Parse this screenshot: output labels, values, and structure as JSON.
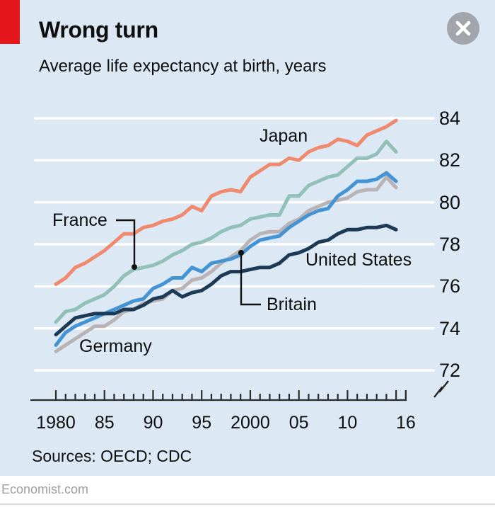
{
  "header": {
    "title": "Wrong turn",
    "subtitle": "Average life expectancy at birth, years"
  },
  "colors": {
    "card_background": "#dce8f4",
    "brand_red": "#e6161d",
    "gridline": "#ffffff",
    "text": "#0e0e0e",
    "close_button": "#a2a6ac"
  },
  "chart_data": {
    "type": "line",
    "title": "Wrong turn",
    "ylabel": "Average life expectancy at birth, years",
    "legend_position": "inline-labels-on-chart",
    "grid": "horizontal-white-lines",
    "x": [
      1980,
      1981,
      1982,
      1983,
      1984,
      1985,
      1986,
      1987,
      1988,
      1989,
      1990,
      1991,
      1992,
      1993,
      1994,
      1995,
      1996,
      1997,
      1998,
      1999,
      2000,
      2001,
      2002,
      2003,
      2004,
      2005,
      2006,
      2007,
      2008,
      2009,
      2010,
      2011,
      2012,
      2013,
      2014,
      2015
    ],
    "series": [
      {
        "name": "Japan",
        "color": "#f08a6e",
        "values": [
          76.1,
          76.4,
          76.9,
          77.1,
          77.4,
          77.7,
          78.1,
          78.5,
          78.5,
          78.8,
          78.9,
          79.1,
          79.2,
          79.4,
          79.8,
          79.6,
          80.3,
          80.5,
          80.6,
          80.5,
          81.2,
          81.5,
          81.8,
          81.8,
          82.1,
          82.0,
          82.4,
          82.6,
          82.7,
          83.0,
          82.9,
          82.7,
          83.2,
          83.4,
          83.6,
          83.9
        ]
      },
      {
        "name": "France",
        "color": "#90c0b8",
        "values": [
          74.3,
          74.8,
          74.9,
          75.2,
          75.4,
          75.6,
          76.0,
          76.5,
          76.8,
          76.9,
          77.0,
          77.2,
          77.5,
          77.7,
          78.0,
          78.1,
          78.3,
          78.6,
          78.8,
          78.9,
          79.2,
          79.3,
          79.4,
          79.4,
          80.3,
          80.3,
          80.8,
          81.0,
          81.2,
          81.3,
          81.7,
          82.1,
          82.1,
          82.3,
          82.9,
          82.4
        ]
      },
      {
        "name": "Britain",
        "color": "#4493d4",
        "values": [
          73.2,
          73.8,
          74.1,
          74.3,
          74.5,
          74.7,
          74.9,
          75.1,
          75.3,
          75.4,
          75.9,
          76.1,
          76.4,
          76.4,
          76.9,
          76.7,
          77.1,
          77.2,
          77.3,
          77.5,
          77.9,
          78.2,
          78.3,
          78.4,
          78.8,
          79.1,
          79.4,
          79.6,
          79.7,
          80.3,
          80.6,
          81.0,
          81.0,
          81.1,
          81.4,
          81.0
        ]
      },
      {
        "name": "Germany",
        "color": "#b9b3b5",
        "values": [
          72.9,
          73.2,
          73.5,
          73.8,
          74.1,
          74.1,
          74.4,
          74.8,
          74.9,
          75.2,
          75.3,
          75.4,
          75.8,
          75.9,
          76.3,
          76.4,
          76.7,
          77.1,
          77.4,
          77.7,
          78.2,
          78.5,
          78.6,
          78.6,
          79.0,
          79.2,
          79.6,
          79.8,
          80.0,
          80.1,
          80.2,
          80.5,
          80.6,
          80.6,
          81.2,
          80.7
        ]
      },
      {
        "name": "United States",
        "color": "#1c3a56",
        "values": [
          73.7,
          74.1,
          74.5,
          74.6,
          74.7,
          74.7,
          74.7,
          74.9,
          74.9,
          75.1,
          75.4,
          75.5,
          75.8,
          75.5,
          75.7,
          75.8,
          76.1,
          76.5,
          76.7,
          76.7,
          76.8,
          76.9,
          76.9,
          77.1,
          77.5,
          77.6,
          77.8,
          78.1,
          78.2,
          78.5,
          78.7,
          78.7,
          78.8,
          78.8,
          78.9,
          78.7
        ]
      }
    ],
    "y_axis": {
      "side": "right",
      "ticks": [
        84,
        82,
        80,
        78,
        76,
        74,
        72
      ],
      "range": [
        71.5,
        84.5
      ],
      "axis_break_symbol": true
    },
    "x_axis": {
      "range": [
        1980,
        2016
      ],
      "minor_ticks_every_year": true,
      "ticks": [
        {
          "year": 1980,
          "label": "1980"
        },
        {
          "year": 1985,
          "label": "85"
        },
        {
          "year": 1990,
          "label": "90"
        },
        {
          "year": 1995,
          "label": "95"
        },
        {
          "year": 2000,
          "label": "2000"
        },
        {
          "year": 2005,
          "label": "05"
        },
        {
          "year": 2010,
          "label": "10"
        },
        {
          "year": 2016,
          "label": "16"
        }
      ]
    }
  },
  "footer": {
    "sources": "Sources: OECD; CDC",
    "site": "Economist.com"
  }
}
